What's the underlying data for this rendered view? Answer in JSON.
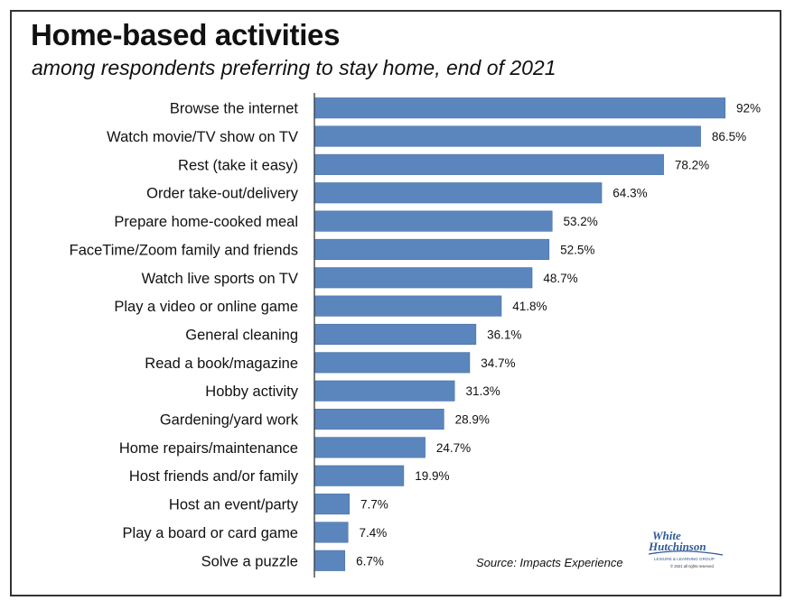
{
  "title": "Home-based activities",
  "subtitle": "among respondents preferring to stay home, end of 2021",
  "source": "Source: Impacts Experience",
  "logo": {
    "line1": "White",
    "line2": "Hutchinson",
    "tagline": "LEISURE & LEARNING GROUP",
    "copyright": "© 2021 all rights reserved"
  },
  "colors": {
    "bar": "#5b86bd",
    "bar_edge": "#4a72a6",
    "axis": "#333333",
    "logo": "#2f5a9a"
  },
  "chart_data": {
    "type": "bar",
    "orientation": "horizontal",
    "categories": [
      "Browse the internet",
      "Watch movie/TV show on TV",
      "Rest (take it easy)",
      "Order take-out/delivery",
      "Prepare home-cooked meal",
      "FaceTime/Zoom family and friends",
      "Watch live sports on TV",
      "Play a video or online game",
      "General cleaning",
      "Read a book/magazine",
      "Hobby activity",
      "Gardening/yard work",
      "Home repairs/maintenance",
      "Host friends and/or family",
      "Host an event/party",
      "Play a board or card game",
      "Solve a puzzle"
    ],
    "values": [
      92,
      86.5,
      78.2,
      64.3,
      53.2,
      52.5,
      48.7,
      41.8,
      36.1,
      34.7,
      31.3,
      28.9,
      24.7,
      19.9,
      7.7,
      7.4,
      6.7
    ],
    "value_labels": [
      "92%",
      "86.5%",
      "78.2%",
      "64.3%",
      "53.2%",
      "52.5%",
      "48.7%",
      "41.8%",
      "36.1%",
      "34.7%",
      "31.3%",
      "28.9%",
      "24.7%",
      "19.9%",
      "7.7%",
      "7.4%",
      "6.7%"
    ],
    "xlim": [
      0,
      92
    ],
    "grid": false,
    "legend": "none"
  }
}
